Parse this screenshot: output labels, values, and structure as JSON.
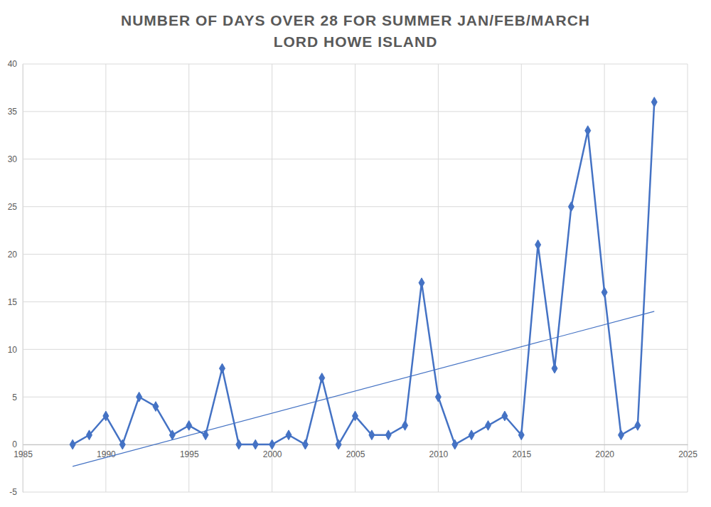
{
  "chart_data": {
    "type": "line",
    "title": "NUMBER OF DAYS OVER 28 FOR SUMMER JAN/FEB/MARCH",
    "subtitle": "LORD HOWE ISLAND",
    "x": [
      1988,
      1989,
      1990,
      1991,
      1992,
      1993,
      1994,
      1995,
      1996,
      1997,
      1998,
      1999,
      2000,
      2001,
      2002,
      2003,
      2004,
      2005,
      2006,
      2007,
      2008,
      2009,
      2010,
      2011,
      2012,
      2013,
      2014,
      2015,
      2016,
      2017,
      2018,
      2019,
      2020,
      2021,
      2022,
      2023
    ],
    "series": [
      {
        "color": "#4472c4",
        "marker": "diamond",
        "line_style": "solid",
        "values": [
          0,
          1,
          3,
          0,
          5,
          4,
          1,
          2,
          1,
          8,
          0,
          0,
          0,
          1,
          0,
          7,
          0,
          3,
          1,
          1,
          2,
          17,
          5,
          0,
          1,
          2,
          3,
          1,
          21,
          8,
          25,
          33,
          16,
          1,
          2,
          36
        ]
      },
      {
        "type": "line",
        "color": "#4472c4",
        "marker": "none",
        "line_style": "solid",
        "x": [
          1988,
          2023
        ],
        "values": [
          -2.3,
          14.0
        ]
      }
    ],
    "xlim": [
      1985,
      2025
    ],
    "xticks": [
      1985,
      1990,
      1995,
      2000,
      2005,
      2010,
      2015,
      2020,
      2025
    ],
    "ylim": [
      -5,
      40
    ],
    "yticks": [
      -5,
      0,
      5,
      10,
      15,
      20,
      25,
      30,
      35,
      40
    ],
    "grid": true
  }
}
